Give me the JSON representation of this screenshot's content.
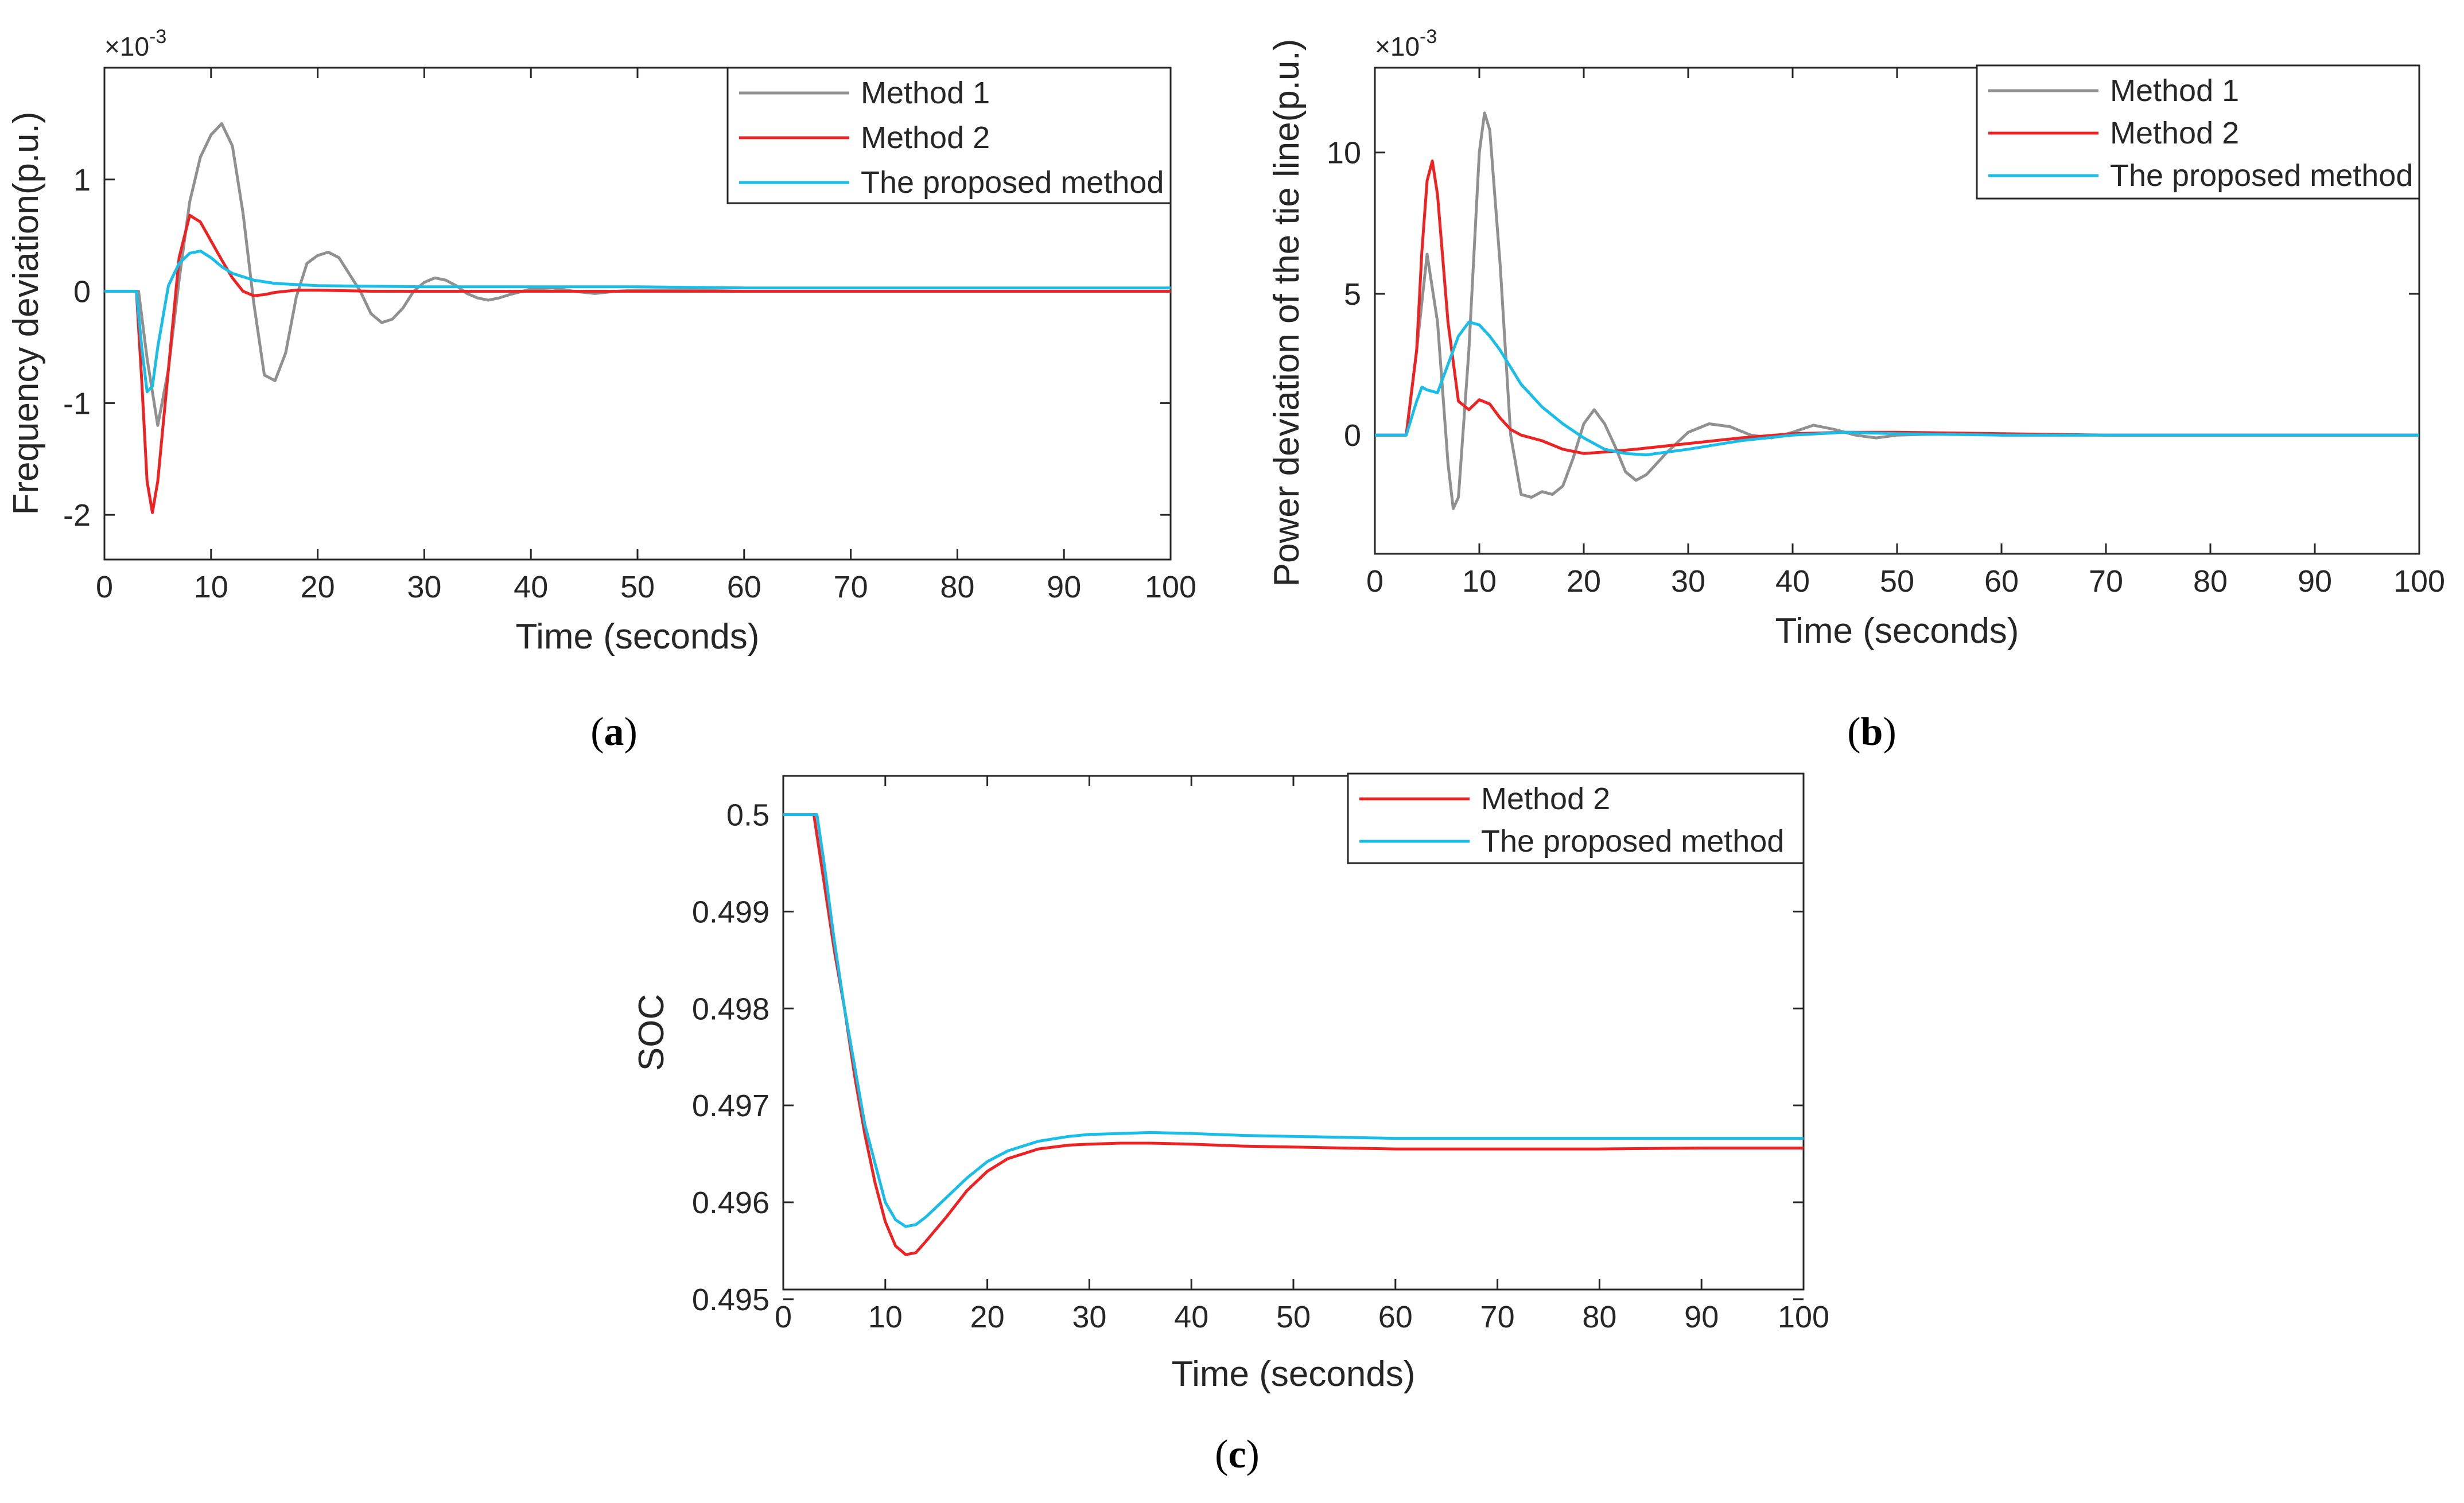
{
  "colors": {
    "method1": "#909090",
    "method2": "#ee2222",
    "proposed": "#18bde8",
    "axis": "#262626"
  },
  "chart_data": [
    {
      "panel": "a",
      "caption": {
        "open": "(",
        "letter": "a",
        "close": ")"
      },
      "type": "line",
      "title": "",
      "xlabel": "Time (seconds)",
      "ylabel": "Frequency deviation(p.u.)",
      "exponent": {
        "times": "×10",
        "power": "-3"
      },
      "xlim": [
        0,
        100
      ],
      "ylim": [
        -2.4,
        2.0
      ],
      "xticks": [
        0,
        10,
        20,
        30,
        40,
        50,
        60,
        70,
        80,
        90,
        100
      ],
      "xtick_labels": [
        "0",
        "10",
        "20",
        "30",
        "40",
        "50",
        "60",
        "70",
        "80",
        "90",
        "100"
      ],
      "yticks": [
        -2,
        -1,
        0,
        1
      ],
      "ytick_labels": [
        "-2",
        "-1",
        "0",
        "1"
      ],
      "legend_position": "top-right",
      "series": [
        {
          "name": "Method 1",
          "color_key": "method1",
          "x": [
            0,
            3.2,
            4,
            5,
            6,
            7,
            8,
            9,
            10,
            11,
            12,
            13,
            14,
            15,
            16,
            17,
            18,
            19,
            20,
            21,
            22,
            23,
            24,
            25,
            26,
            27,
            28,
            29,
            30,
            31,
            32,
            33,
            34,
            35,
            36,
            37,
            38,
            40,
            42,
            44,
            46,
            48,
            50,
            55,
            60,
            70,
            80,
            90,
            100
          ],
          "y": [
            0,
            0,
            -0.6,
            -1.2,
            -0.7,
            0.1,
            0.8,
            1.2,
            1.4,
            1.5,
            1.3,
            0.7,
            -0.1,
            -0.75,
            -0.8,
            -0.55,
            -0.05,
            0.25,
            0.32,
            0.35,
            0.3,
            0.15,
            0.0,
            -0.2,
            -0.28,
            -0.25,
            -0.15,
            0.0,
            0.08,
            0.12,
            0.1,
            0.05,
            -0.02,
            -0.06,
            -0.08,
            -0.06,
            -0.03,
            0.02,
            0.03,
            0.0,
            -0.02,
            0.0,
            0.01,
            0.01,
            0.0,
            0.0,
            0.0,
            0.0,
            0.0
          ]
        },
        {
          "name": "Method 2",
          "color_key": "method2",
          "x": [
            0,
            3,
            3.5,
            4,
            4.5,
            5,
            6,
            7,
            8,
            9,
            10,
            11,
            12,
            13,
            14,
            15,
            16,
            18,
            20,
            25,
            30,
            40,
            50,
            60,
            70,
            80,
            90,
            100
          ],
          "y": [
            0,
            0,
            -0.8,
            -1.7,
            -1.98,
            -1.7,
            -0.7,
            0.3,
            0.68,
            0.62,
            0.45,
            0.28,
            0.12,
            0.0,
            -0.04,
            -0.03,
            -0.01,
            0.01,
            0.01,
            0.0,
            0.0,
            0.0,
            0.0,
            0.0,
            0.0,
            0.0,
            0.0,
            0.0
          ]
        },
        {
          "name": "The proposed method",
          "color_key": "proposed",
          "x": [
            0,
            3,
            3.5,
            4,
            4.5,
            5,
            6,
            7,
            8,
            9,
            10,
            11,
            12,
            14,
            16,
            20,
            30,
            40,
            50,
            60,
            70,
            80,
            90,
            100
          ],
          "y": [
            0,
            0,
            -0.5,
            -0.9,
            -0.85,
            -0.5,
            0.05,
            0.25,
            0.34,
            0.36,
            0.3,
            0.22,
            0.16,
            0.1,
            0.07,
            0.05,
            0.04,
            0.04,
            0.04,
            0.03,
            0.03,
            0.03,
            0.03,
            0.03
          ]
        }
      ]
    },
    {
      "panel": "b",
      "caption": {
        "open": "(",
        "letter": "b",
        "close": ")"
      },
      "type": "line",
      "title": "",
      "xlabel": "Time (seconds)",
      "ylabel": "Power deviation of the tie line(p.u.)",
      "exponent": {
        "times": "×10",
        "power": "-3"
      },
      "xlim": [
        0,
        100
      ],
      "ylim": [
        -4.2,
        13.0
      ],
      "xticks": [
        0,
        10,
        20,
        30,
        40,
        50,
        60,
        70,
        80,
        90,
        100
      ],
      "xtick_labels": [
        "0",
        "10",
        "20",
        "30",
        "40",
        "50",
        "60",
        "70",
        "80",
        "90",
        "100"
      ],
      "yticks": [
        0,
        5,
        10
      ],
      "ytick_labels": [
        "0",
        "5",
        "10"
      ],
      "legend_position": "top-right",
      "series": [
        {
          "name": "Method 1",
          "color_key": "method1",
          "x": [
            0,
            3,
            4,
            5,
            6,
            7,
            7.5,
            8,
            9,
            10,
            10.5,
            11,
            12,
            13,
            14,
            15,
            16,
            17,
            18,
            19,
            20,
            21,
            22,
            23,
            24,
            25,
            26,
            28,
            30,
            32,
            34,
            36,
            38,
            40,
            42,
            44,
            46,
            48,
            50,
            55,
            60,
            70,
            80,
            90,
            100
          ],
          "y": [
            0,
            0,
            3,
            6.4,
            4,
            -1,
            -2.6,
            -2.2,
            3,
            10,
            11.4,
            10.8,
            6,
            0,
            -2.1,
            -2.2,
            -2,
            -2.1,
            -1.8,
            -0.8,
            0.4,
            0.9,
            0.4,
            -0.4,
            -1.3,
            -1.6,
            -1.4,
            -0.6,
            0.1,
            0.4,
            0.3,
            0.0,
            -0.1,
            0.1,
            0.35,
            0.2,
            0.0,
            -0.1,
            0.0,
            0.05,
            0.0,
            0.0,
            0.0,
            0.0,
            0.0
          ]
        },
        {
          "name": "Method 2",
          "color_key": "method2",
          "x": [
            0,
            3,
            4,
            4.5,
            5,
            5.5,
            6,
            7,
            8,
            9,
            10,
            11,
            12,
            13,
            14,
            15,
            16,
            18,
            20,
            22,
            25,
            30,
            35,
            40,
            45,
            50,
            60,
            70,
            80,
            90,
            100
          ],
          "y": [
            0,
            0,
            3,
            6.5,
            9.0,
            9.7,
            8.5,
            4,
            1.2,
            0.9,
            1.25,
            1.1,
            0.6,
            0.2,
            0.0,
            -0.1,
            -0.2,
            -0.5,
            -0.65,
            -0.6,
            -0.5,
            -0.3,
            -0.1,
            0.05,
            0.1,
            0.1,
            0.05,
            0.0,
            0.0,
            0.0,
            0.0
          ]
        },
        {
          "name": "The proposed method",
          "color_key": "proposed",
          "x": [
            0,
            3,
            4,
            4.5,
            5,
            6,
            7,
            8,
            9,
            10,
            11,
            12,
            13,
            14,
            16,
            18,
            20,
            22,
            24,
            26,
            28,
            30,
            35,
            40,
            45,
            50,
            60,
            70,
            80,
            90,
            100
          ],
          "y": [
            0,
            0,
            1.2,
            1.7,
            1.6,
            1.5,
            2.5,
            3.5,
            4.0,
            3.9,
            3.5,
            3.0,
            2.4,
            1.8,
            1.0,
            0.4,
            -0.1,
            -0.5,
            -0.65,
            -0.7,
            -0.6,
            -0.5,
            -0.2,
            0.0,
            0.1,
            0.05,
            0.0,
            0.0,
            0.0,
            0.0,
            0.0
          ]
        }
      ]
    },
    {
      "panel": "c",
      "caption": {
        "open": "(",
        "letter": "c",
        "close": ")"
      },
      "type": "line",
      "title": "",
      "xlabel": "Time (seconds)",
      "ylabel": "SOC",
      "xlim": [
        0,
        100
      ],
      "ylim": [
        0.4951,
        0.5004
      ],
      "xticks": [
        0,
        10,
        20,
        30,
        40,
        50,
        60,
        70,
        80,
        90,
        100
      ],
      "xtick_labels": [
        "0",
        "10",
        "20",
        "30",
        "40",
        "50",
        "60",
        "70",
        "80",
        "90",
        "100"
      ],
      "yticks": [
        0.495,
        0.496,
        0.497,
        0.498,
        0.499,
        0.5
      ],
      "ytick_labels": [
        "0.495",
        "0.496",
        "0.497",
        "0.498",
        "0.499",
        "0.5"
      ],
      "legend_position": "top-right",
      "series": [
        {
          "name": "Method 2",
          "color_key": "method2",
          "x": [
            0,
            3,
            4,
            5,
            6,
            7,
            8,
            9,
            10,
            11,
            12,
            13,
            14,
            16,
            18,
            20,
            22,
            25,
            28,
            30,
            33,
            36,
            40,
            45,
            50,
            55,
            60,
            70,
            80,
            90,
            100
          ],
          "y": [
            0.5,
            0.5,
            0.4993,
            0.4986,
            0.498,
            0.4973,
            0.4967,
            0.4962,
            0.4958,
            0.49555,
            0.49546,
            0.49548,
            0.4956,
            0.49585,
            0.49612,
            0.49632,
            0.49645,
            0.49655,
            0.49659,
            0.4966,
            0.49661,
            0.49661,
            0.4966,
            0.49658,
            0.49657,
            0.49656,
            0.49655,
            0.49655,
            0.49655,
            0.49656,
            0.49656
          ]
        },
        {
          "name": "The proposed method",
          "color_key": "proposed",
          "x": [
            0,
            3,
            3.3,
            4,
            5,
            6,
            7,
            8,
            9,
            10,
            11,
            12,
            13,
            14,
            16,
            18,
            20,
            22,
            25,
            28,
            30,
            33,
            36,
            40,
            45,
            50,
            55,
            60,
            70,
            80,
            90,
            100
          ],
          "y": [
            0.5,
            0.5,
            0.5,
            0.4995,
            0.4987,
            0.498,
            0.4974,
            0.4968,
            0.4964,
            0.496,
            0.49582,
            0.49575,
            0.49577,
            0.49585,
            0.49605,
            0.49625,
            0.49642,
            0.49653,
            0.49663,
            0.49668,
            0.4967,
            0.49671,
            0.49672,
            0.49671,
            0.49669,
            0.49668,
            0.49667,
            0.49666,
            0.49666,
            0.49666,
            0.49666,
            0.49666
          ]
        }
      ]
    }
  ]
}
